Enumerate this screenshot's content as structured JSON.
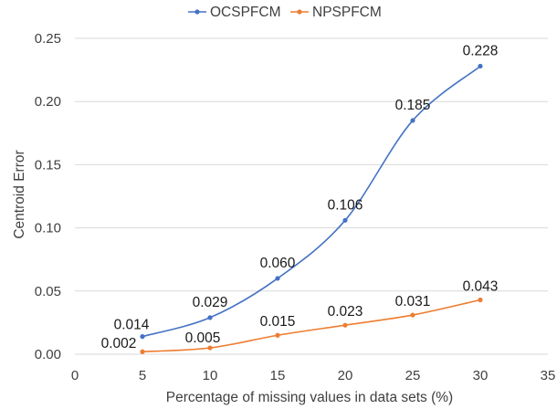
{
  "chart_data": {
    "type": "line",
    "xlabel": "Percentage of missing values in data sets (%)",
    "ylabel": "Centroid Error",
    "xlim": [
      0,
      35
    ],
    "ylim": [
      0,
      0.25
    ],
    "x_ticks": [
      "0",
      "5",
      "10",
      "15",
      "20",
      "25",
      "30",
      "35"
    ],
    "y_ticks": [
      "0.00",
      "0.05",
      "0.10",
      "0.15",
      "0.20",
      "0.25"
    ],
    "grid": "horizontal",
    "legend": "top-center",
    "smooth": true,
    "series": [
      {
        "name": "OCSPFCM",
        "color": "#4472C4",
        "x": [
          5,
          10,
          15,
          20,
          25,
          30
        ],
        "values": [
          0.014,
          0.029,
          0.06,
          0.106,
          0.185,
          0.228
        ],
        "labels": [
          "0.014",
          "0.029",
          "0.060",
          "0.106",
          "0.185",
          "0.228"
        ]
      },
      {
        "name": "NPSPFCM",
        "color": "#ED7D31",
        "x": [
          5,
          10,
          15,
          20,
          25,
          30
        ],
        "values": [
          0.002,
          0.005,
          0.015,
          0.023,
          0.031,
          0.043
        ],
        "labels": [
          "0.002",
          "0.005",
          "0.015",
          "0.023",
          "0.031",
          "0.043"
        ]
      }
    ]
  }
}
